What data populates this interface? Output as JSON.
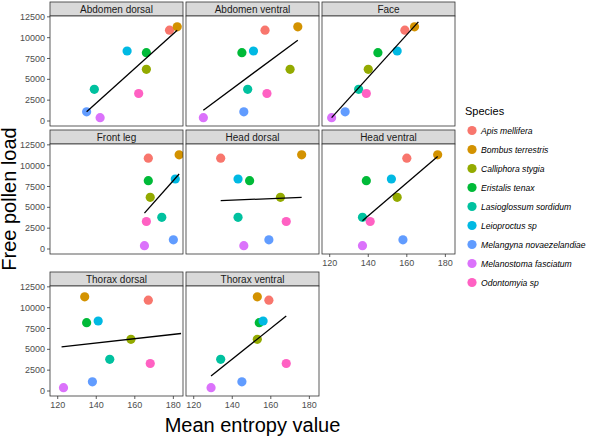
{
  "chart_data": {
    "type": "scatter",
    "x_label": "Mean entropy value",
    "y_label": "Free pollen load",
    "legend_title": "Species",
    "legend": "right",
    "xlim": [
      116,
      185
    ],
    "ylim": [
      -600,
      12600
    ],
    "xticks": [
      120,
      140,
      160,
      180
    ],
    "yticks": [
      0,
      2500,
      5000,
      7500,
      10000,
      12500
    ],
    "series": [
      {
        "name": "Apis mellifera",
        "color": "#F8766D"
      },
      {
        "name": "Bombus terrestris",
        "color": "#D39200"
      },
      {
        "name": "Calliphora stygia",
        "color": "#93AA00"
      },
      {
        "name": "Eristalis tenax",
        "color": "#00BA38"
      },
      {
        "name": "Lasioglossum sordidum",
        "color": "#00C19F"
      },
      {
        "name": "Leioproctus sp",
        "color": "#00B9E3"
      },
      {
        "name": "Melangyna novaezelandiae",
        "color": "#619CFF"
      },
      {
        "name": "Melanostoma fasciatum",
        "color": "#DB72FB"
      },
      {
        "name": "Odontomyia sp",
        "color": "#FF61C3"
      }
    ],
    "panels": [
      {
        "title": "Abdomen dorsal",
        "x": [
          178,
          182,
          166,
          166,
          139,
          156,
          135,
          142,
          162
        ],
        "values": [
          10900,
          11300,
          6200,
          8200,
          3800,
          8400,
          1100,
          400,
          3300
        ],
        "trend": {
          "x": [
            135,
            182
          ],
          "values": [
            1100,
            10900
          ]
        }
      },
      {
        "title": "Abdomen ventral",
        "x": [
          157,
          174,
          170,
          145,
          148,
          151,
          146,
          125,
          158
        ],
        "values": [
          10900,
          11300,
          6200,
          8200,
          3800,
          8400,
          1100,
          400,
          3300
        ],
        "trend": {
          "x": [
            125,
            174
          ],
          "values": [
            1300,
            9700
          ]
        }
      },
      {
        "title": "Face",
        "x": [
          159,
          164,
          140,
          145,
          135,
          155,
          128,
          121,
          139
        ],
        "values": [
          10900,
          11300,
          6200,
          8200,
          3800,
          8400,
          1100,
          400,
          3300
        ],
        "trend": {
          "x": [
            121,
            166
          ],
          "values": [
            400,
            11900
          ]
        }
      },
      {
        "title": "Front leg",
        "x": [
          167,
          183,
          168,
          167,
          174,
          181,
          180,
          165,
          166
        ],
        "values": [
          10900,
          11300,
          6200,
          8200,
          3800,
          8400,
          1100,
          400,
          3300
        ],
        "trend": {
          "x": [
            165,
            183
          ],
          "values": [
            4300,
            9000
          ]
        }
      },
      {
        "title": "Head dorsal",
        "x": [
          134,
          176,
          165,
          149,
          143,
          143,
          159,
          146,
          168
        ],
        "values": [
          10900,
          11300,
          6200,
          8200,
          3800,
          8400,
          1100,
          400,
          3300
        ],
        "trend": {
          "x": [
            134,
            176
          ],
          "values": [
            5800,
            6200
          ]
        }
      },
      {
        "title": "Head ventral",
        "x": [
          160,
          176,
          155,
          139,
          137,
          152,
          158,
          137,
          141
        ],
        "values": [
          10900,
          11300,
          6200,
          8200,
          3800,
          8400,
          1100,
          400,
          3300
        ],
        "trend": {
          "x": [
            137,
            176
          ],
          "values": [
            3400,
            11100
          ]
        }
      },
      {
        "title": "Thorax dorsal",
        "x": [
          167,
          134,
          158,
          135,
          147,
          141,
          138,
          123,
          168
        ],
        "values": [
          10900,
          11300,
          6200,
          8200,
          3800,
          8400,
          1100,
          400,
          3300
        ],
        "trend": {
          "x": [
            122,
            184
          ],
          "values": [
            5300,
            6900
          ]
        }
      },
      {
        "title": "Thorax ventral",
        "x": [
          159,
          153,
          153,
          154,
          134,
          156,
          145,
          129,
          168
        ],
        "values": [
          10900,
          11300,
          6200,
          8200,
          3800,
          8400,
          1100,
          400,
          3300
        ],
        "trend": {
          "x": [
            129,
            168
          ],
          "values": [
            1800,
            9000
          ]
        }
      }
    ]
  }
}
